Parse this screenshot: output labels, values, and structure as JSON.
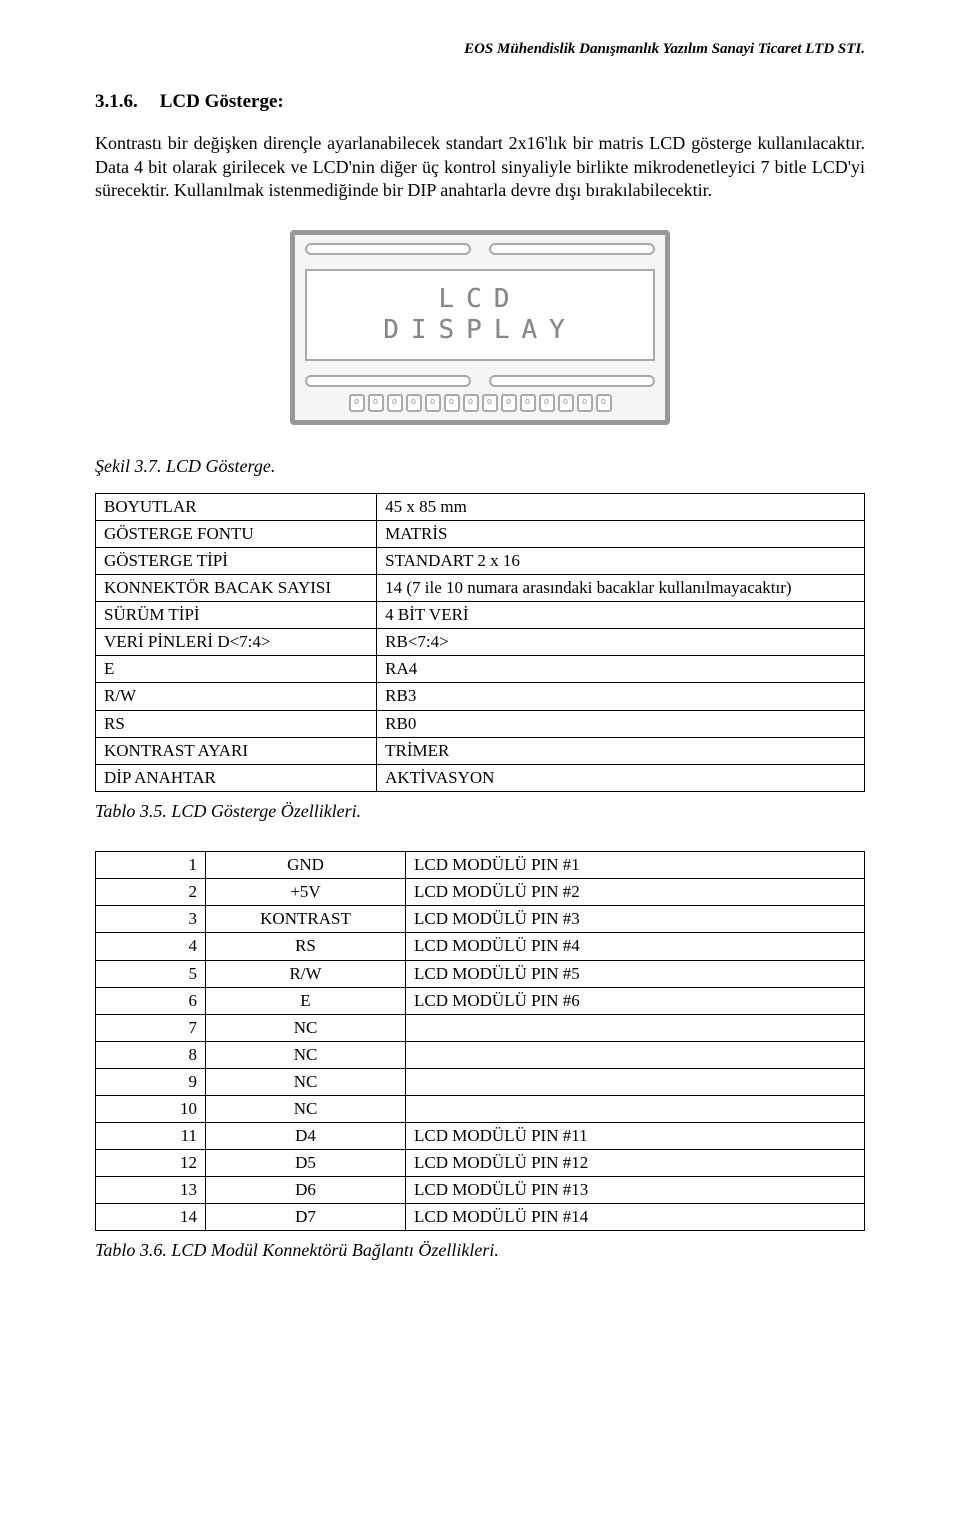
{
  "header": {
    "company": "EOS Mühendislik Danışmanlık Yazılım Sanayi Ticaret LTD STI."
  },
  "section": {
    "number": "3.1.6.",
    "title": "LCD Gösterge:"
  },
  "paragraph": "Kontrastı bir değişken dirençle ayarlanabilecek standart 2x16'lık bir matris LCD gösterge kullanılacaktır. Data 4 bit olarak girilecek ve LCD'nin diğer üç kontrol sinyaliyle birlikte mikrodenetleyici 7 bitle LCD'yi sürecektir. Kullanılmak istenmediğinde bir DIP anahtarla devre dışı bırakılabilecektir.",
  "lcd": {
    "line1": "LCD",
    "line2": "DISPLAY",
    "pin_positions": [
      "o",
      "o",
      "o",
      "o",
      "o",
      "o",
      "o",
      "o",
      "o",
      "o",
      "o",
      "o",
      "o",
      "o"
    ]
  },
  "figure_caption": "Şekil 3.7. LCD Gösterge.",
  "table1": {
    "rows": [
      [
        "BOYUTLAR",
        "45 x 85 mm"
      ],
      [
        "GÖSTERGE FONTU",
        "MATRİS"
      ],
      [
        "GÖSTERGE TİPİ",
        "STANDART 2 x 16"
      ],
      [
        "KONNEKTÖR BACAK SAYISI",
        "14 (7 ile 10 numara arasındaki bacaklar kullanılmayacaktır)"
      ],
      [
        "SÜRÜM TİPİ",
        "4 BİT VERİ"
      ],
      [
        "VERİ PİNLERİ D<7:4>",
        "RB<7:4>"
      ],
      [
        "E",
        "RA4"
      ],
      [
        "R/W",
        "RB3"
      ],
      [
        "RS",
        "RB0"
      ],
      [
        "KONTRAST AYARI",
        "TRİMER"
      ],
      [
        "DİP ANAHTAR",
        "AKTİVASYON"
      ]
    ],
    "caption": "Tablo 3.5. LCD Gösterge Özellikleri."
  },
  "table2": {
    "rows": [
      [
        "1",
        "GND",
        "LCD MODÜLÜ PIN #1"
      ],
      [
        "2",
        "+5V",
        "LCD MODÜLÜ PIN #2"
      ],
      [
        "3",
        "KONTRAST",
        "LCD MODÜLÜ PIN #3"
      ],
      [
        "4",
        "RS",
        "LCD MODÜLÜ PIN #4"
      ],
      [
        "5",
        "R/W",
        "LCD MODÜLÜ PIN #5"
      ],
      [
        "6",
        "E",
        "LCD MODÜLÜ PIN #6"
      ],
      [
        "7",
        "NC",
        ""
      ],
      [
        "8",
        "NC",
        ""
      ],
      [
        "9",
        "NC",
        ""
      ],
      [
        "10",
        "NC",
        ""
      ],
      [
        "11",
        "D4",
        "LCD MODÜLÜ PIN #11"
      ],
      [
        "12",
        "D5",
        "LCD MODÜLÜ PIN #12"
      ],
      [
        "13",
        "D6",
        "LCD MODÜLÜ PIN #13"
      ],
      [
        "14",
        "D7",
        "LCD MODÜLÜ PIN #14"
      ]
    ],
    "caption": "Tablo 3.6. LCD Modül Konnektörü Bağlantı Özellikleri."
  }
}
